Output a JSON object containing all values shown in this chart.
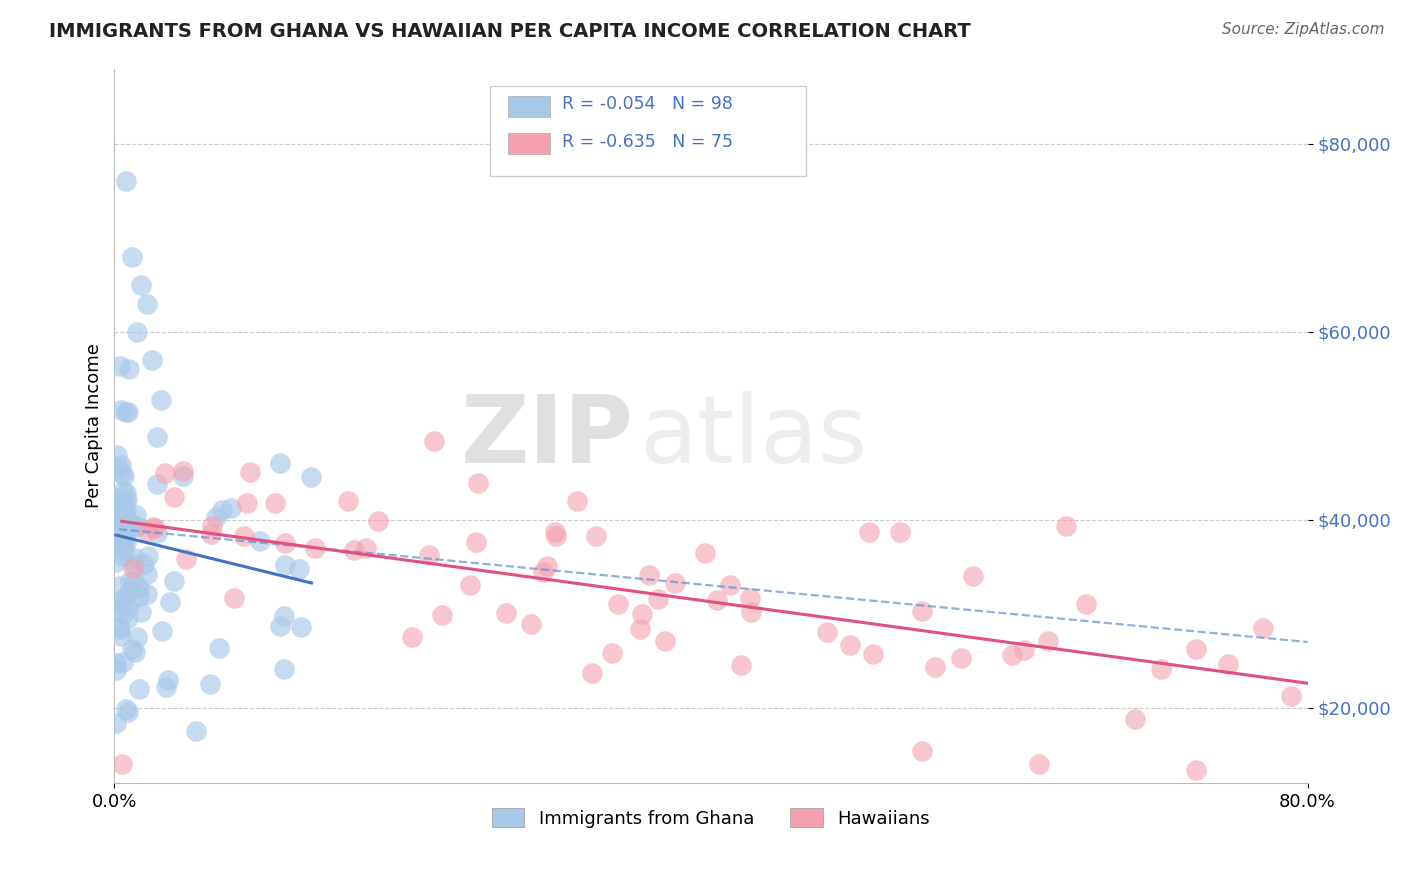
{
  "title": "IMMIGRANTS FROM GHANA VS HAWAIIAN PER CAPITA INCOME CORRELATION CHART",
  "source_text": "Source: ZipAtlas.com",
  "ylabel": "Per Capita Income",
  "legend_label_1": "Immigrants from Ghana",
  "legend_label_2": "Hawaiians",
  "r1": -0.054,
  "n1": 98,
  "r2": -0.635,
  "n2": 75,
  "color1": "#a8c8e8",
  "color2": "#f4a0b0",
  "line_color1": "#4472c4",
  "line_color2": "#e05080",
  "dash_color": "#6090d0",
  "xlim": [
    0.0,
    0.8
  ],
  "ylim": [
    12000,
    88000
  ],
  "yticks": [
    20000,
    40000,
    60000,
    80000
  ],
  "title_fontsize": 14,
  "axis_fontsize": 13,
  "watermark_zip": "ZIP",
  "watermark_atlas": "atlas"
}
